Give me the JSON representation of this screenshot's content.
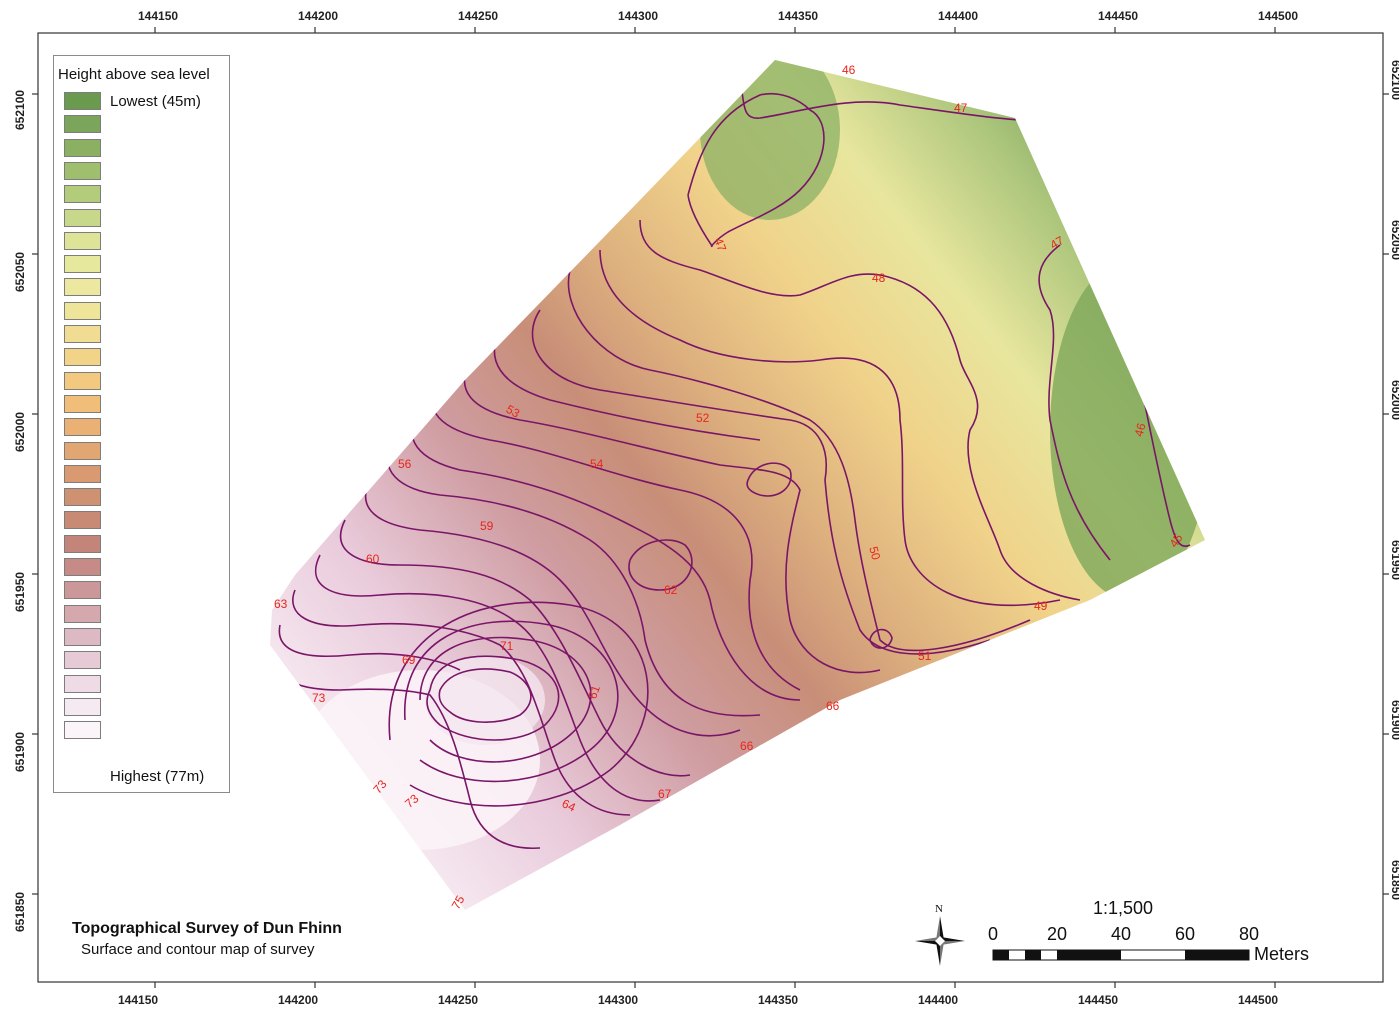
{
  "legend": {
    "title": "Height above sea level",
    "lowest_label": "Lowest (45m)",
    "highest_label": "Highest (77m)",
    "swatches": [
      "#6a9a4e",
      "#7aa55a",
      "#8cb062",
      "#9fbe6e",
      "#b3cc7c",
      "#c8d88a",
      "#dde498",
      "#e6e89e",
      "#ece8a0",
      "#eee49a",
      "#f0dc92",
      "#f2d488",
      "#f2c97e",
      "#f0be78",
      "#ebb174",
      "#e2a673",
      "#d99a72",
      "#ce9172",
      "#c88a74",
      "#c3847a",
      "#c68a87",
      "#cc9798",
      "#d4a8ad",
      "#ddbac3",
      "#e6cad5",
      "#eedbe6",
      "#f5eaf2",
      "#fbf4f9"
    ]
  },
  "axes": {
    "x_ticks": [
      "144150",
      "144200",
      "144250",
      "144300",
      "144350",
      "144400",
      "144450",
      "144500"
    ],
    "y_ticks": [
      "652100",
      "652050",
      "652000",
      "651950",
      "651900",
      "651850"
    ]
  },
  "contour_labels": [
    "46",
    "47",
    "47",
    "47",
    "48",
    "46",
    "45",
    "49",
    "50",
    "51",
    "52",
    "53",
    "54",
    "56",
    "59",
    "60",
    "63",
    "69",
    "71",
    "61",
    "62",
    "66",
    "66",
    "67",
    "64",
    "73",
    "73",
    "73",
    "75"
  ],
  "title_block": {
    "title": "Topographical Survey of Dun Fhinn",
    "subtitle": "Surface and contour map of survey"
  },
  "north_arrow": {
    "label": "N",
    "icon": "north-arrow-icon"
  },
  "scale_bar": {
    "ratio": "1:1,500",
    "numbers": [
      "0",
      "20",
      "40",
      "60",
      "80"
    ],
    "unit": "Meters"
  }
}
